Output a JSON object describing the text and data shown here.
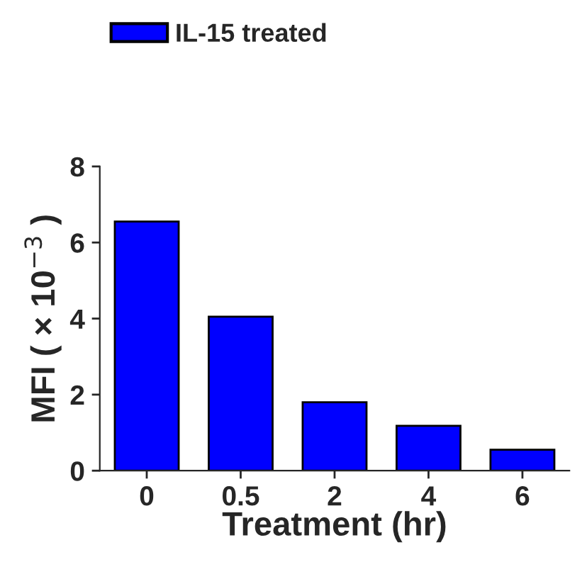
{
  "chart_data": {
    "type": "bar",
    "xlabel": "Treatment (hr)",
    "ylabel": "MFI ( × 10$^{−3}$ )",
    "categories": [
      "0",
      "0.5",
      "2",
      "4",
      "6"
    ],
    "series": [
      {
        "name": "IL-15 treated",
        "color": "#0000ff",
        "values": [
          6.55,
          4.05,
          1.8,
          1.18,
          0.55
        ]
      }
    ],
    "ylim": [
      0,
      8
    ],
    "yticks": [
      0,
      2,
      4,
      6,
      8
    ],
    "grid": false,
    "legend": "top left"
  }
}
